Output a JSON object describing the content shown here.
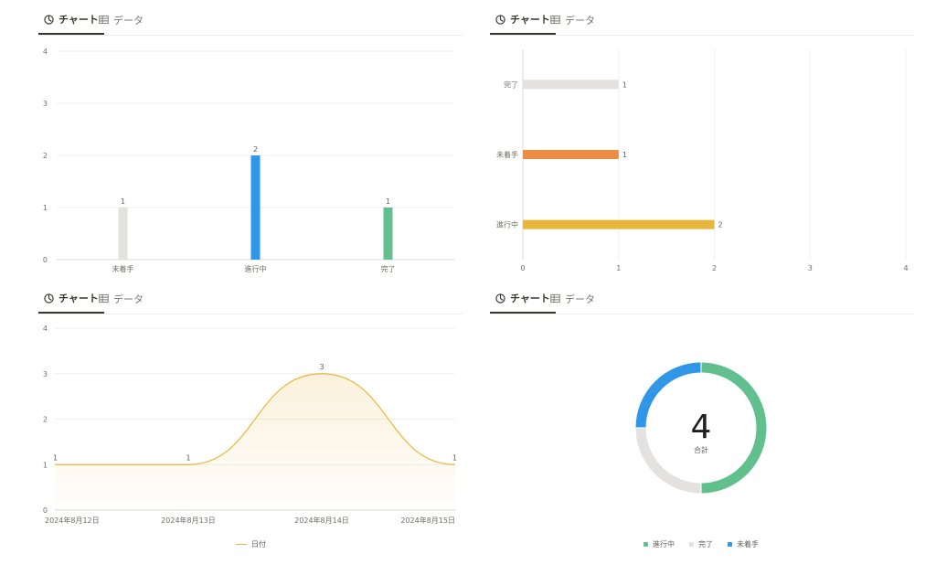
{
  "tabs": {
    "chart_label": "チャート",
    "data_label": "データ"
  },
  "colors": {
    "gray": "#e3e2e0",
    "blue": "#2f96e8",
    "green": "#62c08e",
    "orange": "#ec8c45",
    "yellow": "#e6b73a",
    "grid": "#efefee",
    "axis": "#dadad8"
  },
  "chart_data": [
    {
      "type": "bar",
      "categories": [
        "未着手",
        "進行中",
        "完了"
      ],
      "values": [
        1,
        2,
        1
      ],
      "ylim": [
        0,
        4
      ],
      "yticks": [
        "0",
        "1",
        "2",
        "3",
        "4"
      ]
    },
    {
      "type": "bar",
      "orientation": "horizontal",
      "categories": [
        "完了",
        "未着手",
        "進行中"
      ],
      "values": [
        1,
        1,
        2
      ],
      "xlim": [
        0,
        4
      ],
      "xticks": [
        "0",
        "1",
        "2",
        "3",
        "4"
      ]
    },
    {
      "type": "area",
      "x": [
        "2024年8月12日",
        "2024年8月13日",
        "2024年8月14日",
        "2024年8月15日"
      ],
      "series": [
        {
          "name": "日付",
          "values": [
            1,
            1,
            3,
            1
          ]
        }
      ],
      "ylim": [
        0,
        4
      ],
      "yticks": [
        "0",
        "1",
        "2",
        "3",
        "4"
      ],
      "legend": "bottom"
    },
    {
      "type": "pie",
      "categories": [
        "進行中",
        "完了",
        "未着手"
      ],
      "values": [
        2,
        1,
        1
      ],
      "total": "4",
      "total_label": "合計",
      "legend": "bottom"
    }
  ]
}
